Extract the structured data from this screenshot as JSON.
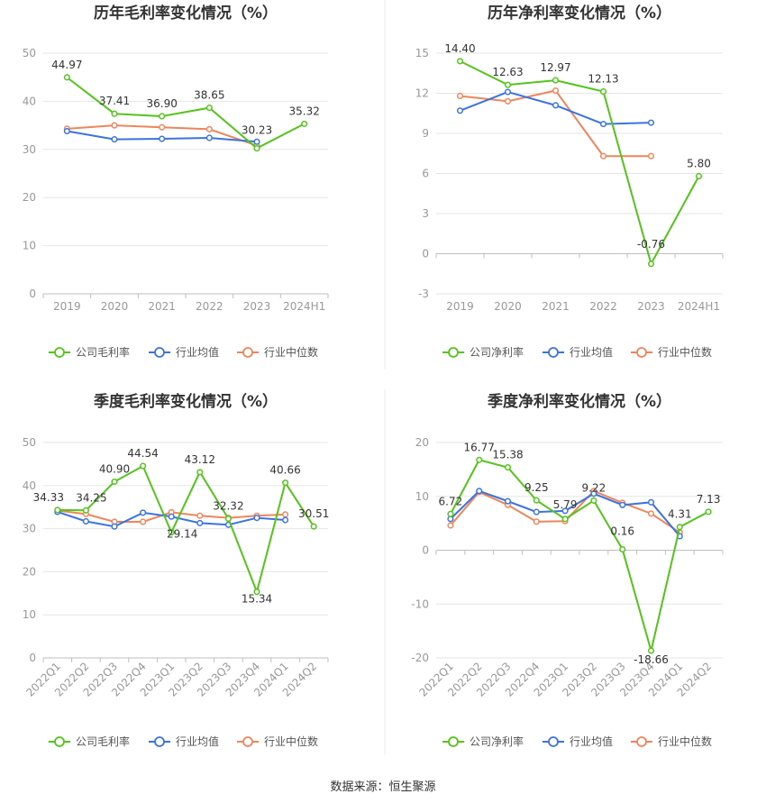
{
  "source": "数据来源：恒生聚源",
  "legend_labels": {
    "industry_avg": "行业均值",
    "industry_median": "行业中位数"
  },
  "colors": {
    "company": "#52c41a",
    "industry_avg": "#3b73e0",
    "industry_median": "#f0855a",
    "grid": "#e6e6e6",
    "axis": "#999999",
    "title": "#333333"
  },
  "chart_data": [
    {
      "id": "annual-gross",
      "type": "line",
      "title": "历年毛利率变化情况（%）",
      "company_label": "公司毛利率",
      "categories": [
        "2019",
        "2020",
        "2021",
        "2022",
        "2023",
        "2024H1"
      ],
      "ylim": [
        0,
        50
      ],
      "yticks": [
        0,
        10,
        20,
        30,
        40,
        50
      ],
      "rotate_x": false,
      "series": [
        {
          "key": "company",
          "name": "公司毛利率",
          "values": [
            44.97,
            37.41,
            36.9,
            38.65,
            30.23,
            35.32
          ],
          "labels": [
            "44.97",
            "37.41",
            "36.90",
            "38.65",
            "30.23",
            "35.32"
          ]
        },
        {
          "key": "industry_avg",
          "name": "行业均值",
          "values": [
            33.8,
            32.1,
            32.2,
            32.4,
            31.6,
            null
          ]
        },
        {
          "key": "industry_median",
          "name": "行业中位数",
          "values": [
            34.3,
            35.0,
            34.6,
            34.2,
            30.8,
            null
          ]
        }
      ]
    },
    {
      "id": "annual-net",
      "type": "line",
      "title": "历年净利率变化情况（%）",
      "company_label": "公司净利率",
      "categories": [
        "2019",
        "2020",
        "2021",
        "2022",
        "2023",
        "2024H1"
      ],
      "ylim": [
        -3,
        15
      ],
      "yticks": [
        -3,
        0,
        3,
        6,
        9,
        12,
        15
      ],
      "rotate_x": false,
      "series": [
        {
          "key": "company",
          "name": "公司净利率",
          "values": [
            14.4,
            12.63,
            12.97,
            12.13,
            -0.76,
            5.8
          ],
          "labels": [
            "14.40",
            "12.63",
            "12.97",
            "12.13",
            "-0.76",
            "5.80"
          ]
        },
        {
          "key": "industry_avg",
          "name": "行业均值",
          "values": [
            10.7,
            12.1,
            11.1,
            9.7,
            9.8,
            null
          ]
        },
        {
          "key": "industry_median",
          "name": "行业中位数",
          "values": [
            11.8,
            11.4,
            12.2,
            7.3,
            7.3,
            null
          ]
        }
      ]
    },
    {
      "id": "quarterly-gross",
      "type": "line",
      "title": "季度毛利率变化情况（%）",
      "company_label": "公司毛利率",
      "categories": [
        "2022Q1",
        "2022Q2",
        "2022Q3",
        "2022Q4",
        "2023Q1",
        "2023Q2",
        "2023Q3",
        "2023Q4",
        "2024Q1",
        "2024Q2"
      ],
      "ylim": [
        0,
        50
      ],
      "yticks": [
        0,
        10,
        20,
        30,
        40,
        50
      ],
      "rotate_x": true,
      "series": [
        {
          "key": "company",
          "name": "公司毛利率",
          "values": [
            34.33,
            34.25,
            40.9,
            44.54,
            29.14,
            43.12,
            32.32,
            15.34,
            40.66,
            30.51
          ],
          "labels": [
            "34.33",
            "34.25",
            "40.90",
            "44.54",
            "29.14",
            "43.12",
            "32.32",
            "15.34",
            "40.66",
            "30.51"
          ]
        },
        {
          "key": "industry_avg",
          "name": "行业均值",
          "values": [
            33.9,
            31.7,
            30.5,
            33.7,
            32.8,
            31.3,
            30.9,
            32.5,
            32.0,
            null
          ]
        },
        {
          "key": "industry_median",
          "name": "行业中位数",
          "values": [
            34.2,
            33.4,
            31.6,
            31.6,
            33.8,
            33.0,
            32.5,
            33.0,
            33.3,
            null
          ]
        }
      ]
    },
    {
      "id": "quarterly-net",
      "type": "line",
      "title": "季度净利率变化情况（%）",
      "company_label": "公司净利率",
      "categories": [
        "2022Q1",
        "2022Q2",
        "2022Q3",
        "2022Q4",
        "2023Q1",
        "2023Q2",
        "2023Q3",
        "2023Q4",
        "2024Q1",
        "2024Q2"
      ],
      "ylim": [
        -20,
        20
      ],
      "yticks": [
        -20,
        -10,
        0,
        10,
        20
      ],
      "rotate_x": true,
      "series": [
        {
          "key": "company",
          "name": "公司净利率",
          "values": [
            6.72,
            16.77,
            15.38,
            9.25,
            5.79,
            9.22,
            0.16,
            -18.66,
            4.31,
            7.13
          ],
          "labels": [
            "6.72",
            "16.77",
            "15.38",
            "9.25",
            "5.79",
            "9.22",
            "0.16",
            "-18.66",
            "4.31",
            "7.13"
          ]
        },
        {
          "key": "industry_avg",
          "name": "行业均值",
          "values": [
            5.8,
            11.0,
            9.1,
            7.1,
            7.3,
            10.5,
            8.4,
            8.9,
            2.6,
            null
          ]
        },
        {
          "key": "industry_median",
          "name": "行业中位数",
          "values": [
            4.6,
            10.8,
            8.4,
            5.3,
            5.4,
            11.0,
            8.8,
            6.8,
            3.3,
            null
          ]
        }
      ]
    }
  ]
}
